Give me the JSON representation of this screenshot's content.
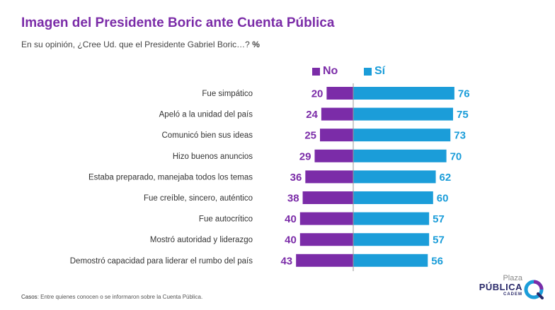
{
  "title": "Imagen del Presidente Boric ante Cuenta Pública",
  "subtitle_main": "En su opinión, ¿Cree Ud. que el Presidente Gabriel Boric…?",
  "subtitle_unit": "%",
  "colors": {
    "no": "#7B2CA8",
    "si": "#1B9DD9",
    "title": "#7B2CA8"
  },
  "chart_data": {
    "type": "bar",
    "orientation": "horizontal-diverging",
    "title": "Imagen del Presidente Boric ante Cuenta Pública",
    "unit": "%",
    "categories": [
      "Fue simpático",
      "Apeló a la unidad del país",
      "Comunicó bien sus ideas",
      "Hizo buenos anuncios",
      "Estaba preparado, manejaba todos los temas",
      "Fue creíble, sincero, auténtico",
      "Fue autocrítico",
      "Mostró autoridad y liderazgo",
      "Demostró capacidad para liderar el rumbo del país"
    ],
    "series": [
      {
        "name": "No",
        "values": [
          20,
          24,
          25,
          29,
          36,
          38,
          40,
          40,
          43
        ]
      },
      {
        "name": "Sí",
        "values": [
          76,
          75,
          73,
          70,
          62,
          60,
          57,
          57,
          56
        ]
      }
    ]
  },
  "legend": {
    "no": "No",
    "si": "Sí"
  },
  "footer": {
    "label": "Casos",
    "text": ": Entre quienes conocen o se informaron sobre la Cuenta Pública."
  },
  "logo": {
    "line1": "Plaza",
    "line2": "PÚBLICA",
    "line3": "CADEM"
  }
}
